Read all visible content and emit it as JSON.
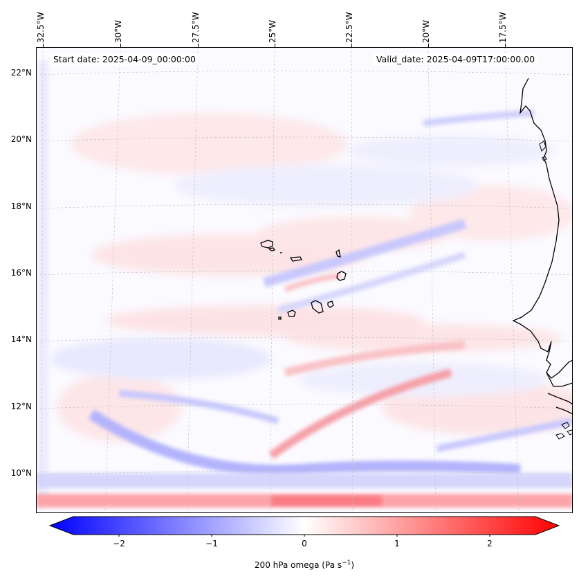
{
  "map": {
    "start_date": "Start date: 2025-04-09_00:00:00",
    "valid_date": "Valid_date: 2025-04-09T17:00:00.00",
    "lon_labels": [
      "32.5°W",
      "30°W",
      "27.5°W",
      "25°W",
      "22.5°W",
      "20°W",
      "17.5°W"
    ],
    "lat_labels": [
      "22°N",
      "20°N",
      "18°N",
      "16°N",
      "14°N",
      "12°N",
      "10°N"
    ],
    "colors": {
      "negative": "#0000ff",
      "neutral": "#ffffff",
      "positive": "#ff0000",
      "coast": "#000000"
    }
  },
  "colorbar": {
    "ticks": [
      "−2",
      "−1",
      "0",
      "1",
      "2"
    ],
    "label": "200 hPa omega (Pa s",
    "label_sup": "−1",
    "label_end": ")",
    "range": [
      -2.7,
      2.7
    ]
  }
}
